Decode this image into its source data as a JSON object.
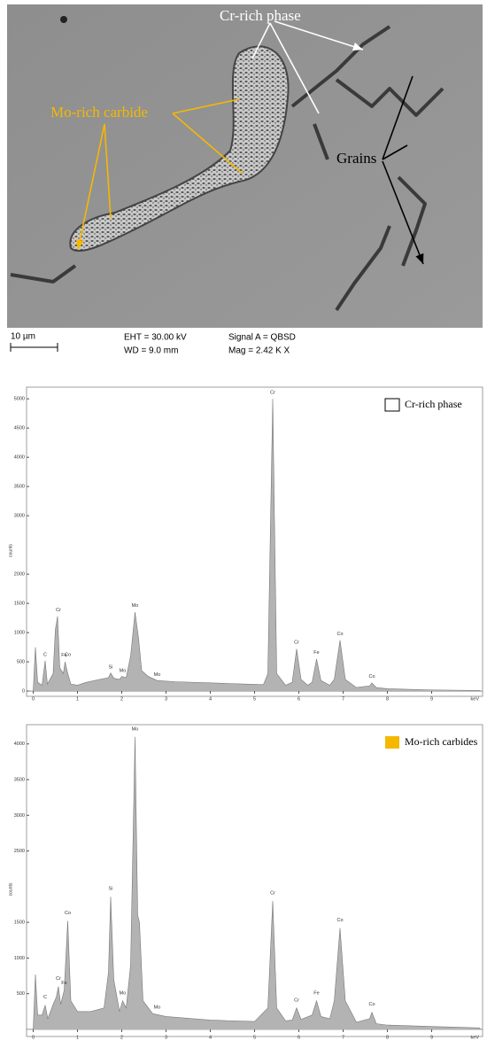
{
  "micrograph": {
    "labels": {
      "cr_rich_phase": "Cr-rich phase",
      "mo_rich_carbide": "Mo-rich carbide",
      "grains": "Grains"
    },
    "scale_bar": "10 µm",
    "info": [
      "EHT = 30.00 kV",
      "WD =  9.0 mm",
      "Signal A = QBSD",
      "Mag =  2.42 K X"
    ]
  },
  "chart_data": [
    {
      "type": "area",
      "x_label": "keV",
      "y_label": "counts",
      "x": [
        0,
        0.05,
        0.1,
        0.2,
        0.27,
        0.32,
        0.45,
        0.5,
        0.55,
        0.6,
        0.68,
        0.72,
        0.78,
        0.85,
        1.0,
        1.2,
        1.5,
        1.7,
        1.75,
        1.82,
        1.95,
        2.0,
        2.1,
        2.2,
        2.3,
        2.38,
        2.45,
        2.6,
        2.8,
        3.2,
        4.0,
        4.8,
        5.2,
        5.3,
        5.41,
        5.5,
        5.7,
        5.85,
        5.95,
        6.05,
        6.2,
        6.3,
        6.4,
        6.5,
        6.7,
        6.8,
        6.93,
        7.05,
        7.3,
        7.6,
        7.65,
        7.75,
        8.0,
        9,
        10.1
      ],
      "series": [
        {
          "name": "Cr-rich phase",
          "color": "#b3b3b3",
          "legend_color": "#ffffff",
          "values": [
            0,
            750,
            150,
            100,
            520,
            120,
            300,
            1050,
            1280,
            400,
            300,
            500,
            300,
            120,
            100,
            150,
            200,
            230,
            310,
            220,
            200,
            250,
            230,
            600,
            1350,
            900,
            350,
            250,
            180,
            160,
            140,
            120,
            110,
            300,
            5000,
            300,
            100,
            150,
            720,
            200,
            100,
            150,
            550,
            180,
            100,
            200,
            870,
            200,
            60,
            90,
            140,
            60,
            40,
            20,
            10
          ]
        }
      ],
      "xlim": [
        -0.15,
        10.15
      ],
      "ylim": [
        -90,
        5200
      ],
      "xticks": [
        0,
        1,
        2,
        3,
        4,
        5,
        6,
        7,
        8,
        9
      ],
      "yticks": [
        0,
        500,
        1000,
        1500,
        2000,
        3000,
        3500,
        4000,
        4500,
        5000
      ],
      "annotations": [
        {
          "label": "C",
          "x": 0.27,
          "y": 560
        },
        {
          "label": "Cr",
          "x": 0.57,
          "y": 1330
        },
        {
          "label": "Fe",
          "x": 0.7,
          "y": 550
        },
        {
          "label": "Co",
          "x": 0.78,
          "y": 560
        },
        {
          "label": "Si",
          "x": 1.75,
          "y": 350
        },
        {
          "label": "Mo",
          "x": 2.02,
          "y": 290
        },
        {
          "label": "Mo",
          "x": 2.3,
          "y": 1400
        },
        {
          "label": "Mo",
          "x": 2.8,
          "y": 220
        },
        {
          "label": "Cr",
          "x": 5.41,
          "y": 5050
        },
        {
          "label": "Cr",
          "x": 5.95,
          "y": 770
        },
        {
          "label": "Fe",
          "x": 6.4,
          "y": 600
        },
        {
          "label": "Co",
          "x": 6.93,
          "y": 920
        },
        {
          "label": "Co",
          "x": 7.65,
          "y": 190
        }
      ]
    },
    {
      "type": "area",
      "x_label": "keV",
      "y_label": "counts",
      "x": [
        0,
        0.05,
        0.1,
        0.2,
        0.27,
        0.33,
        0.45,
        0.52,
        0.57,
        0.62,
        0.7,
        0.78,
        0.85,
        1.0,
        1.3,
        1.6,
        1.7,
        1.75,
        1.82,
        1.95,
        2.02,
        2.1,
        2.2,
        2.3,
        2.36,
        2.4,
        2.48,
        2.7,
        3.0,
        4.0,
        5.0,
        5.3,
        5.41,
        5.5,
        5.7,
        5.85,
        5.95,
        6.05,
        6.3,
        6.4,
        6.5,
        6.7,
        6.8,
        6.93,
        7.05,
        7.3,
        7.6,
        7.65,
        7.75,
        8.0,
        9,
        10.1
      ],
      "series": [
        {
          "name": "Mo-rich carbides",
          "color": "#b3b3b3",
          "legend_color": "#f5b800",
          "values": [
            0,
            770,
            200,
            200,
            340,
            150,
            350,
            450,
            600,
            350,
            550,
            1520,
            400,
            250,
            250,
            300,
            800,
            1860,
            700,
            250,
            400,
            300,
            900,
            4100,
            1600,
            1500,
            400,
            220,
            180,
            130,
            110,
            300,
            1800,
            300,
            120,
            130,
            300,
            140,
            200,
            400,
            180,
            150,
            400,
            1420,
            400,
            100,
            150,
            240,
            80,
            60,
            40,
            20
          ]
        }
      ],
      "xlim": [
        -0.15,
        10.15
      ],
      "ylim": [
        -100,
        4270
      ],
      "xticks": [
        0,
        1,
        2,
        3,
        4,
        5,
        6,
        7,
        8,
        9
      ],
      "yticks": [
        500,
        1000,
        1500,
        2500,
        3000,
        3500,
        4000
      ],
      "annotations": [
        {
          "label": "C",
          "x": 0.27,
          "y": 400
        },
        {
          "label": "Cr",
          "x": 0.57,
          "y": 660
        },
        {
          "label": "Fe",
          "x": 0.7,
          "y": 600
        },
        {
          "label": "Co",
          "x": 0.78,
          "y": 1580
        },
        {
          "label": "Si",
          "x": 1.75,
          "y": 1920
        },
        {
          "label": "Mo",
          "x": 2.02,
          "y": 460
        },
        {
          "label": "Mo",
          "x": 2.3,
          "y": 4160
        },
        {
          "label": "Mo",
          "x": 2.8,
          "y": 260
        },
        {
          "label": "Cr",
          "x": 5.41,
          "y": 1860
        },
        {
          "label": "Cr",
          "x": 5.95,
          "y": 360
        },
        {
          "label": "Fe",
          "x": 6.4,
          "y": 460
        },
        {
          "label": "Co",
          "x": 6.93,
          "y": 1480
        },
        {
          "label": "Co",
          "x": 7.65,
          "y": 300
        }
      ]
    }
  ]
}
